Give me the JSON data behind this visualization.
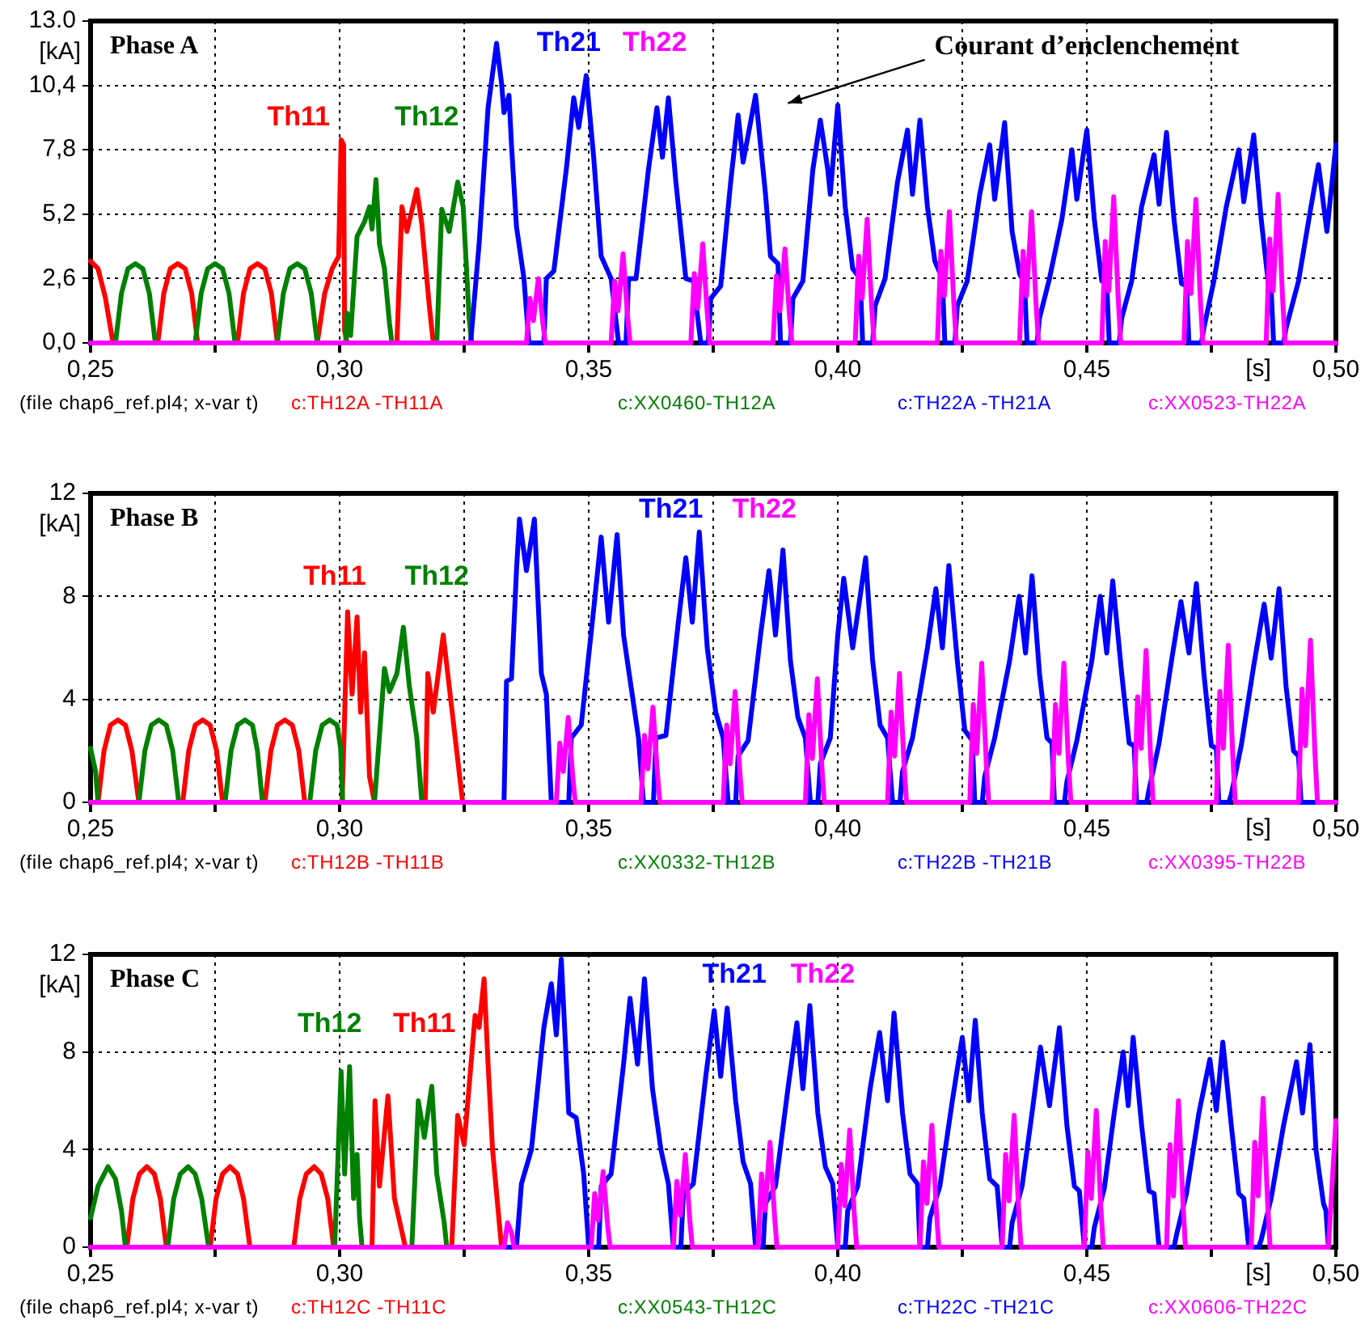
{
  "chart_data": [
    {
      "type": "line",
      "title": "Phase A",
      "xlabel": "[s]",
      "ylabel": "[kA]",
      "xlim": [
        0.25,
        0.5
      ],
      "ylim": [
        0,
        13
      ],
      "xticks": [
        {
          "value": 0.25,
          "label": "0,25"
        },
        {
          "value": 0.275,
          "label": null
        },
        {
          "value": 0.3,
          "label": "0,30"
        },
        {
          "value": 0.325,
          "label": null
        },
        {
          "value": 0.35,
          "label": "0,35"
        },
        {
          "value": 0.375,
          "label": null
        },
        {
          "value": 0.4,
          "label": "0,40"
        },
        {
          "value": 0.425,
          "label": null
        },
        {
          "value": 0.45,
          "label": "0,45"
        },
        {
          "value": 0.475,
          "label": null
        },
        {
          "value": 0.5,
          "label": "0,50"
        }
      ],
      "yticks": [
        {
          "value": 0,
          "label": "0,0"
        },
        {
          "value": 2.6,
          "label": "2,6"
        },
        {
          "value": 5.2,
          "label": "5,2"
        },
        {
          "value": 7.8,
          "label": "7,8"
        },
        {
          "value": 10.4,
          "label": "10,4"
        },
        {
          "value": 13,
          "label": "13.0"
        }
      ],
      "grid": true,
      "legend": "bottom",
      "marker": "none",
      "line_style": "solid",
      "annotations": [
        "Th11",
        "Th12",
        "Th21",
        "Th22",
        "Courant d’enclenchement",
        "(file chap6_ref.pl4; x-var t)"
      ],
      "series": [
        {
          "name": "c:TH12A -TH11A",
          "color": "#ff0000",
          "x": [
            0.25,
            0.2515,
            0.253,
            0.2545,
            0.2635,
            0.2647,
            0.266,
            0.2675,
            0.269,
            0.2703,
            0.2715,
            0.2795,
            0.2807,
            0.282,
            0.2835,
            0.285,
            0.2863,
            0.2875,
            0.2955,
            0.297,
            0.2985,
            0.2998,
            0.3003,
            0.3008,
            0.301,
            0.3015,
            0.3115,
            0.3125,
            0.3135,
            0.3155,
            0.3165,
            0.318,
            0.3188
          ],
          "values": [
            3.3,
            3.0,
            1.8,
            0,
            0,
            2.0,
            3.0,
            3.2,
            3.0,
            2.0,
            0,
            0,
            2.0,
            3.0,
            3.2,
            3.0,
            2.0,
            0,
            0,
            2.0,
            3.0,
            3.5,
            8.2,
            8.0,
            0.5,
            0,
            0,
            5.5,
            4.5,
            6.2,
            4.8,
            1.5,
            0
          ]
        },
        {
          "name": "c:XX0460-TH12A",
          "color": "#008000",
          "x": [
            0.255,
            0.2562,
            0.2575,
            0.259,
            0.2605,
            0.2618,
            0.263,
            0.271,
            0.2722,
            0.2735,
            0.275,
            0.2765,
            0.2778,
            0.279,
            0.2875,
            0.2887,
            0.29,
            0.2915,
            0.293,
            0.2943,
            0.2955,
            0.3012,
            0.3015,
            0.3022,
            0.3035,
            0.305,
            0.306,
            0.3065,
            0.3073,
            0.308,
            0.309,
            0.31,
            0.3105,
            0.3195,
            0.3205,
            0.322,
            0.3237,
            0.3248,
            0.326,
            0.3265
          ],
          "values": [
            0,
            2.0,
            3.0,
            3.2,
            3.0,
            2.0,
            0,
            0,
            2.0,
            3.0,
            3.2,
            3.0,
            2.0,
            0,
            0,
            2.0,
            3.0,
            3.2,
            3.0,
            2.0,
            0,
            0,
            1.2,
            0.3,
            4.3,
            4.9,
            5.5,
            4.6,
            6.6,
            4.0,
            3.0,
            0.8,
            0,
            0,
            5.4,
            4.5,
            6.5,
            5.5,
            1.0,
            0
          ]
        },
        {
          "name": "c:TH22A -TH21A",
          "color": "#0000ff",
          "x": [
            0.25,
            0.3263,
            0.328,
            0.3298,
            0.3315,
            0.3325,
            0.333,
            0.334,
            0.3345,
            0.3355,
            0.337,
            0.338,
            0.341,
            0.3415,
            0.343,
            0.3455,
            0.347,
            0.348,
            0.3495,
            0.351,
            0.3525,
            0.3545,
            0.356,
            0.3575,
            0.358,
            0.3595,
            0.362,
            0.3637,
            0.3648,
            0.366,
            0.3675,
            0.3695,
            0.371,
            0.3725,
            0.374,
            0.3745,
            0.3765,
            0.3785,
            0.38,
            0.381,
            0.3835,
            0.3855,
            0.3865,
            0.388,
            0.3885,
            0.3905,
            0.391,
            0.393,
            0.395,
            0.3965,
            0.398,
            0.3985,
            0.4,
            0.4015,
            0.403,
            0.4045,
            0.405,
            0.407,
            0.4075,
            0.4095,
            0.412,
            0.414,
            0.415,
            0.4165,
            0.418,
            0.4195,
            0.421,
            0.4215,
            0.4235,
            0.424,
            0.426,
            0.4285,
            0.4305,
            0.4315,
            0.4335,
            0.435,
            0.4365,
            0.4375,
            0.438,
            0.44,
            0.4405,
            0.4425,
            0.445,
            0.447,
            0.448,
            0.45,
            0.4515,
            0.453,
            0.454,
            0.4545,
            0.4565,
            0.457,
            0.459,
            0.461,
            0.4635,
            0.4645,
            0.466,
            0.4675,
            0.469,
            0.47,
            0.4705,
            0.473,
            0.4735,
            0.4755,
            0.478,
            0.4805,
            0.4815,
            0.4835,
            0.485,
            0.4865,
            0.487,
            0.4875,
            0.4895,
            0.49,
            0.4925,
            0.495,
            0.4965,
            0.4982,
            0.5
          ],
          "values": [
            0,
            0,
            4,
            9.5,
            12.1,
            10.5,
            9.3,
            10,
            8,
            4.7,
            2.6,
            0,
            0,
            2.6,
            2.9,
            7,
            9.9,
            8.7,
            10.8,
            7.5,
            3.5,
            2.6,
            0,
            0,
            2.6,
            2.6,
            7,
            9.5,
            7.5,
            9.9,
            6.5,
            2.6,
            2.5,
            0,
            0,
            1.8,
            2.3,
            6.5,
            9.2,
            7.3,
            10.0,
            6,
            3.5,
            3.2,
            0,
            0,
            1.8,
            2.5,
            7,
            9.0,
            7,
            6,
            9.6,
            5.5,
            3,
            2.6,
            0,
            0,
            1.5,
            2.6,
            6.5,
            8.6,
            6,
            9.0,
            5.5,
            3.3,
            2.6,
            0,
            0,
            1.5,
            2.5,
            6,
            8.0,
            5.8,
            8.9,
            4.5,
            2.8,
            2.4,
            0,
            0,
            1.0,
            2.6,
            5,
            7.8,
            5.8,
            8.6,
            5,
            2.5,
            2.4,
            0,
            0,
            1.0,
            2.5,
            5.5,
            7.6,
            5.6,
            8.5,
            5,
            2.4,
            2.3,
            0,
            0,
            0.6,
            2.5,
            5.5,
            7.8,
            5.7,
            8.4,
            5,
            2.3,
            2.2,
            0,
            0,
            0.6,
            2.5,
            5.5,
            7.2,
            4.5,
            8.0
          ]
        },
        {
          "name": "c:XX0523-TH22A",
          "color": "#ff00ff",
          "x": [
            0.25,
            0.3375,
            0.3382,
            0.3389,
            0.3399,
            0.3408,
            0.3413,
            0.3545,
            0.3552,
            0.3559,
            0.3569,
            0.3578,
            0.3583,
            0.3705,
            0.3712,
            0.3719,
            0.3729,
            0.3738,
            0.3743,
            0.387,
            0.3877,
            0.3884,
            0.3894,
            0.3903,
            0.3908,
            0.4035,
            0.4042,
            0.4049,
            0.4059,
            0.4068,
            0.4073,
            0.42,
            0.4207,
            0.4214,
            0.4224,
            0.4233,
            0.4238,
            0.4365,
            0.4372,
            0.4379,
            0.4389,
            0.4398,
            0.4403,
            0.453,
            0.4537,
            0.4544,
            0.4554,
            0.4563,
            0.4568,
            0.4695,
            0.4702,
            0.4709,
            0.4719,
            0.4728,
            0.4733,
            0.486,
            0.4867,
            0.4874,
            0.4884,
            0.4893,
            0.4898,
            0.5
          ],
          "values": [
            0,
            0,
            1.8,
            0.9,
            2.6,
            0.8,
            0,
            0,
            2.5,
            1.3,
            3.6,
            1.1,
            0,
            0,
            2.8,
            1.4,
            4.0,
            1.2,
            0,
            0,
            2.7,
            1.3,
            3.8,
            1.1,
            0,
            0,
            3.5,
            1.8,
            5.0,
            1.5,
            0,
            0,
            3.7,
            1.9,
            5.3,
            1.6,
            0,
            0,
            3.7,
            1.9,
            5.3,
            1.6,
            0,
            0,
            4.1,
            2.1,
            5.9,
            1.8,
            0,
            0,
            4.1,
            2.0,
            5.8,
            1.7,
            0,
            0,
            4.2,
            2.1,
            6.0,
            1.8,
            0,
            0
          ]
        }
      ]
    },
    {
      "type": "line",
      "title": "Phase B",
      "xlabel": "[s]",
      "ylabel": "[kA]",
      "xlim": [
        0.25,
        0.5
      ],
      "ylim": [
        0,
        12
      ],
      "xticks": [
        {
          "value": 0.25,
          "label": "0,25"
        },
        {
          "value": 0.275,
          "label": null
        },
        {
          "value": 0.3,
          "label": "0,30"
        },
        {
          "value": 0.325,
          "label": null
        },
        {
          "value": 0.35,
          "label": "0,35"
        },
        {
          "value": 0.375,
          "label": null
        },
        {
          "value": 0.4,
          "label": "0,40"
        },
        {
          "value": 0.425,
          "label": null
        },
        {
          "value": 0.45,
          "label": "0,45"
        },
        {
          "value": 0.475,
          "label": null
        },
        {
          "value": 0.5,
          "label": "0,50"
        }
      ],
      "yticks": [
        0,
        4,
        8,
        12
      ],
      "grid": true,
      "legend": "bottom",
      "marker": "none",
      "line_style": "solid",
      "annotations": [
        "Th11",
        "Th12",
        "Th21",
        "Th22",
        "(file chap6_ref.pl4; x-var t)"
      ],
      "series": [
        {
          "name": "c:TH12B -TH11B",
          "color": "#ff0000",
          "x": [
            0.25,
            0.2515,
            0.2527,
            0.254,
            0.2555,
            0.257,
            0.2583,
            0.2597,
            0.2685,
            0.2697,
            0.271,
            0.2725,
            0.274,
            0.2753,
            0.2765,
            0.285,
            0.2862,
            0.2875,
            0.289,
            0.2905,
            0.2918,
            0.293,
            0.3005,
            0.3016,
            0.3025,
            0.3035,
            0.3042,
            0.305,
            0.306,
            0.307,
            0.3172,
            0.3177,
            0.3188,
            0.3208,
            0.322,
            0.3235,
            0.3247
          ],
          "values": [
            0,
            0,
            2.0,
            3.0,
            3.2,
            3.0,
            2.0,
            0,
            0,
            2.0,
            3.0,
            3.2,
            3.0,
            2.0,
            0,
            0,
            2.0,
            3.0,
            3.2,
            3.0,
            2.0,
            0,
            0,
            7.4,
            4.2,
            7.2,
            3.5,
            5.8,
            1.0,
            0,
            0,
            5.0,
            3.5,
            6.5,
            4.5,
            2.0,
            0
          ]
        },
        {
          "name": "c:XX0332-TH12B",
          "color": "#008000",
          "x": [
            0.25,
            0.251,
            0.2515,
            0.2597,
            0.2609,
            0.2622,
            0.2637,
            0.2652,
            0.2665,
            0.2677,
            0.277,
            0.2782,
            0.2795,
            0.281,
            0.2825,
            0.2835,
            0.2845,
            0.294,
            0.2952,
            0.2965,
            0.298,
            0.2995,
            0.3002,
            0.3006,
            0.307,
            0.309,
            0.31,
            0.3115,
            0.3128,
            0.314,
            0.3155,
            0.3165
          ],
          "values": [
            2.1,
            1.2,
            0,
            0,
            2.0,
            3.0,
            3.2,
            3.0,
            2.0,
            0,
            0,
            2.0,
            3.0,
            3.2,
            3.0,
            2.0,
            0,
            0,
            2.0,
            3.0,
            3.2,
            3.0,
            2.1,
            0,
            0,
            5.2,
            4.3,
            5.0,
            6.8,
            4.5,
            2.5,
            0
          ]
        },
        {
          "name": "c:TH22B -TH21B",
          "color": "#0000ff",
          "x": [
            0.25,
            0.333,
            0.3335,
            0.3345,
            0.3355,
            0.3361,
            0.3375,
            0.3391,
            0.3405,
            0.3415,
            0.3425,
            0.346,
            0.3465,
            0.3485,
            0.351,
            0.3525,
            0.354,
            0.3557,
            0.357,
            0.3585,
            0.36,
            0.361,
            0.363,
            0.3635,
            0.3655,
            0.368,
            0.3695,
            0.3708,
            0.3722,
            0.3738,
            0.3755,
            0.377,
            0.378,
            0.3795,
            0.38,
            0.382,
            0.3845,
            0.3862,
            0.3875,
            0.389,
            0.3905,
            0.392,
            0.3935,
            0.3945,
            0.396,
            0.3965,
            0.3985,
            0.4,
            0.4012,
            0.403,
            0.4056,
            0.407,
            0.4085,
            0.41,
            0.411,
            0.4125,
            0.413,
            0.415,
            0.418,
            0.4197,
            0.421,
            0.4223,
            0.424,
            0.4255,
            0.427,
            0.4275,
            0.429,
            0.4295,
            0.4315,
            0.4345,
            0.4364,
            0.4377,
            0.439,
            0.4405,
            0.442,
            0.443,
            0.4435,
            0.4455,
            0.446,
            0.448,
            0.451,
            0.4527,
            0.454,
            0.4552,
            0.457,
            0.4585,
            0.4595,
            0.46,
            0.462,
            0.4625,
            0.4645,
            0.467,
            0.4689,
            0.4705,
            0.472,
            0.4735,
            0.475,
            0.476,
            0.4765,
            0.4785,
            0.479,
            0.481,
            0.4835,
            0.4856,
            0.487,
            0.4886,
            0.49,
            0.4915,
            0.4925,
            0.493,
            0.5
          ],
          "values": [
            0,
            0,
            4.7,
            4.8,
            9.0,
            11.0,
            9.0,
            11.0,
            5.0,
            4.2,
            0,
            0,
            2.5,
            3.0,
            7.5,
            10.3,
            7.0,
            10.4,
            6.5,
            4.5,
            2.5,
            0,
            0,
            2.5,
            2.6,
            7,
            9.5,
            7.0,
            10.5,
            6,
            3.5,
            2.5,
            0,
            0,
            1.8,
            2.4,
            6.5,
            9.0,
            6.5,
            9.8,
            5.5,
            3.3,
            2.5,
            0,
            0,
            1.5,
            2.5,
            6.5,
            8.7,
            6.0,
            9.5,
            5.5,
            3.0,
            2.5,
            0,
            0,
            1.2,
            2.5,
            6.0,
            8.3,
            6.0,
            9.2,
            5.5,
            2.8,
            2.4,
            0,
            0,
            1.0,
            2.5,
            5.5,
            8.0,
            5.8,
            8.8,
            5.0,
            2.5,
            2.3,
            0,
            0,
            0.8,
            2.4,
            5.5,
            8.0,
            5.8,
            8.6,
            5.0,
            2.3,
            2.2,
            0,
            0,
            0.5,
            2.3,
            5.5,
            7.8,
            5.8,
            8.5,
            5.0,
            2.2,
            2.1,
            0,
            0,
            0.3,
            2.2,
            5.3,
            7.7,
            5.6,
            8.3,
            4.5,
            2.0,
            1.8,
            0,
            0
          ]
        },
        {
          "name": "c:XX0395-TH22B",
          "color": "#ff00ff",
          "x": [
            0.25,
            0.3435,
            0.3442,
            0.3449,
            0.3459,
            0.3468,
            0.3473,
            0.3605,
            0.3612,
            0.3619,
            0.3629,
            0.3638,
            0.3643,
            0.377,
            0.3777,
            0.3784,
            0.3794,
            0.3803,
            0.3808,
            0.3935,
            0.3942,
            0.3949,
            0.3959,
            0.3968,
            0.3973,
            0.41,
            0.4107,
            0.4114,
            0.4124,
            0.4133,
            0.4138,
            0.4265,
            0.4272,
            0.4279,
            0.4289,
            0.4298,
            0.4303,
            0.443,
            0.4437,
            0.4444,
            0.4454,
            0.4463,
            0.4468,
            0.4595,
            0.4602,
            0.4609,
            0.4619,
            0.4628,
            0.4633,
            0.476,
            0.4767,
            0.4774,
            0.4784,
            0.4793,
            0.4798,
            0.4925,
            0.4932,
            0.4939,
            0.4949,
            0.4958,
            0.4963,
            0.5
          ],
          "values": [
            0,
            0,
            2.3,
            1.2,
            3.3,
            1.0,
            0,
            0,
            2.6,
            1.3,
            3.7,
            1.1,
            0,
            0,
            3.0,
            1.5,
            4.3,
            1.3,
            0,
            0,
            3.4,
            1.7,
            4.8,
            1.4,
            0,
            0,
            3.5,
            1.8,
            5.0,
            1.5,
            0,
            0,
            3.8,
            1.9,
            5.4,
            1.6,
            0,
            0,
            3.8,
            1.9,
            5.4,
            1.6,
            0,
            0,
            4.1,
            2.1,
            5.9,
            1.8,
            0,
            0,
            4.3,
            2.1,
            6.1,
            1.8,
            0,
            0,
            4.4,
            2.2,
            6.3,
            1.9,
            0,
            0
          ]
        }
      ]
    },
    {
      "type": "line",
      "title": "Phase C",
      "xlabel": "[s]",
      "ylabel": "[kA]",
      "xlim": [
        0.25,
        0.5
      ],
      "ylim": [
        0,
        12
      ],
      "xticks": [
        {
          "value": 0.25,
          "label": "0,25"
        },
        {
          "value": 0.275,
          "label": null
        },
        {
          "value": 0.3,
          "label": "0,30"
        },
        {
          "value": 0.325,
          "label": null
        },
        {
          "value": 0.35,
          "label": "0,35"
        },
        {
          "value": 0.375,
          "label": null
        },
        {
          "value": 0.4,
          "label": "0,40"
        },
        {
          "value": 0.425,
          "label": null
        },
        {
          "value": 0.45,
          "label": "0,45"
        },
        {
          "value": 0.475,
          "label": null
        },
        {
          "value": 0.5,
          "label": "0,50"
        }
      ],
      "yticks": [
        0,
        4,
        8,
        12
      ],
      "grid": true,
      "legend": "bottom",
      "marker": "none",
      "line_style": "solid",
      "annotations": [
        "Th11",
        "Th12",
        "Th21",
        "Th22",
        "(file chap6_ref.pl4; x-var t)"
      ],
      "series": [
        {
          "name": "c:TH12C -TH11C",
          "color": "#ff0000",
          "x": [
            0.2573,
            0.2585,
            0.2598,
            0.2613,
            0.2628,
            0.264,
            0.2652,
            0.274,
            0.2752,
            0.2765,
            0.278,
            0.2795,
            0.2807,
            0.282,
            0.2908,
            0.292,
            0.2933,
            0.2949,
            0.2963,
            0.2976,
            0.2988,
            0.3065,
            0.3071,
            0.308,
            0.3097,
            0.311,
            0.3132,
            0.3225,
            0.3237,
            0.325,
            0.3272,
            0.328,
            0.329,
            0.3298,
            0.3307,
            0.3325
          ],
          "values": [
            0,
            2.0,
            3.0,
            3.3,
            3.0,
            2.0,
            0,
            0,
            2.0,
            3.0,
            3.3,
            3.0,
            2.0,
            0,
            0,
            2.0,
            3.0,
            3.3,
            3.0,
            2.0,
            0,
            0,
            6.0,
            2.5,
            6.2,
            2.0,
            0,
            0,
            5.4,
            4.2,
            9.5,
            9.0,
            11.0,
            7.5,
            4.0,
            0
          ]
        },
        {
          "name": "c:XX0543-TH12C",
          "color": "#008000",
          "x": [
            0.25,
            0.2515,
            0.2535,
            0.255,
            0.2562,
            0.257,
            0.2655,
            0.2667,
            0.268,
            0.2696,
            0.271,
            0.2723,
            0.2737,
            0.299,
            0.3003,
            0.301,
            0.302,
            0.3028,
            0.3035,
            0.304,
            0.3045,
            0.3145,
            0.3158,
            0.317,
            0.3185,
            0.3195,
            0.321,
            0.3215
          ],
          "values": [
            1.2,
            2.5,
            3.3,
            2.8,
            1.5,
            0,
            0,
            2.0,
            3.0,
            3.3,
            3.0,
            2.0,
            0,
            0,
            7.2,
            3.0,
            7.4,
            2.0,
            3.8,
            1.2,
            0,
            0,
            6.0,
            4.5,
            6.6,
            3.0,
            1.0,
            0
          ]
        },
        {
          "name": "c:TH22C -TH21C",
          "color": "#0000ff",
          "x": [
            0.25,
            0.3355,
            0.3365,
            0.3385,
            0.341,
            0.3425,
            0.3435,
            0.3445,
            0.346,
            0.3475,
            0.349,
            0.35,
            0.352,
            0.3525,
            0.3545,
            0.357,
            0.3583,
            0.3598,
            0.3612,
            0.3628,
            0.3645,
            0.366,
            0.367,
            0.3685,
            0.369,
            0.371,
            0.3735,
            0.3752,
            0.3765,
            0.3778,
            0.3795,
            0.381,
            0.3825,
            0.3835,
            0.385,
            0.3855,
            0.3875,
            0.39,
            0.3918,
            0.393,
            0.3944,
            0.396,
            0.3975,
            0.399,
            0.4,
            0.4015,
            0.402,
            0.404,
            0.4065,
            0.4084,
            0.41,
            0.4113,
            0.413,
            0.4145,
            0.416,
            0.4165,
            0.418,
            0.4185,
            0.4205,
            0.423,
            0.425,
            0.4263,
            0.4276,
            0.429,
            0.4305,
            0.432,
            0.433,
            0.4345,
            0.435,
            0.437,
            0.439,
            0.4407,
            0.4425,
            0.4445,
            0.446,
            0.4475,
            0.4485,
            0.4495,
            0.451,
            0.4515,
            0.4535,
            0.4555,
            0.4573,
            0.4583,
            0.4593,
            0.461,
            0.4625,
            0.4635,
            0.4645,
            0.4675,
            0.468,
            0.47,
            0.4725,
            0.4747,
            0.476,
            0.4773,
            0.479,
            0.4805,
            0.4815,
            0.4825,
            0.4845,
            0.485,
            0.487,
            0.4895,
            0.4921,
            0.4933,
            0.4948,
            0.496,
            0.4975,
            0.498,
            0.4985
          ],
          "values": [
            0,
            0,
            2.6,
            4.0,
            9.0,
            10.8,
            8.7,
            11.8,
            5.5,
            5.3,
            3.0,
            0,
            0,
            2.5,
            3.0,
            7.5,
            10.2,
            7.5,
            11.0,
            6.5,
            4.0,
            2.6,
            0,
            0,
            2.2,
            2.6,
            7,
            9.7,
            7.0,
            9.8,
            6,
            3.5,
            2.6,
            0,
            0,
            1.8,
            2.5,
            6.5,
            9.2,
            6.5,
            9.9,
            5.5,
            3.3,
            2.6,
            0,
            0,
            1.5,
            2.5,
            6.5,
            8.8,
            6.0,
            9.6,
            5.5,
            3.0,
            2.6,
            0,
            0,
            1.2,
            2.5,
            6.0,
            8.6,
            6.0,
            9.3,
            5.5,
            2.8,
            2.5,
            0,
            0,
            1.0,
            2.5,
            5.5,
            8.2,
            5.8,
            9.0,
            5.0,
            2.5,
            2.3,
            0,
            0,
            0.8,
            2.4,
            5.5,
            8.0,
            5.8,
            8.6,
            5.0,
            2.3,
            2.2,
            0,
            0,
            0.5,
            2.2,
            5.5,
            7.7,
            5.6,
            8.4,
            5.0,
            2.2,
            2.0,
            0,
            0,
            0.3,
            2.0,
            5.0,
            7.6,
            5.5,
            8.3,
            4.0,
            1.8,
            1.5,
            0
          ]
        },
        {
          "name": "c:XX0606-TH22C",
          "color": "#ff00ff",
          "x": [
            0.25,
            0.333,
            0.3337,
            0.3345,
            0.335,
            0.3505,
            0.3512,
            0.3519,
            0.3529,
            0.3538,
            0.3543,
            0.367,
            0.3677,
            0.3684,
            0.3694,
            0.3703,
            0.3708,
            0.384,
            0.3847,
            0.3854,
            0.3864,
            0.3873,
            0.3878,
            0.4,
            0.4007,
            0.4014,
            0.4024,
            0.4033,
            0.4038,
            0.4165,
            0.4172,
            0.4179,
            0.4189,
            0.4198,
            0.4203,
            0.433,
            0.4337,
            0.4344,
            0.4354,
            0.4363,
            0.4368,
            0.4495,
            0.4502,
            0.4509,
            0.4519,
            0.4528,
            0.4533,
            0.466,
            0.4667,
            0.4674,
            0.4684,
            0.4693,
            0.4698,
            0.483,
            0.4837,
            0.4844,
            0.4854,
            0.4863,
            0.4868,
            0.4985,
            0.5
          ],
          "values": [
            0,
            0,
            1.0,
            0.6,
            0,
            0,
            2.2,
            1.1,
            3.1,
            0.9,
            0,
            0,
            2.7,
            1.3,
            3.8,
            1.1,
            0,
            0,
            3.0,
            1.5,
            4.3,
            1.3,
            0,
            0,
            3.4,
            1.7,
            4.8,
            1.4,
            0,
            0,
            3.5,
            1.8,
            5.0,
            1.5,
            0,
            0,
            3.8,
            1.9,
            5.4,
            1.6,
            0,
            0,
            3.9,
            2.0,
            5.6,
            1.7,
            0,
            0,
            4.2,
            2.1,
            6.0,
            1.8,
            0,
            0,
            4.3,
            2.1,
            6.1,
            1.8,
            0,
            0,
            5.2
          ]
        }
      ]
    }
  ]
}
